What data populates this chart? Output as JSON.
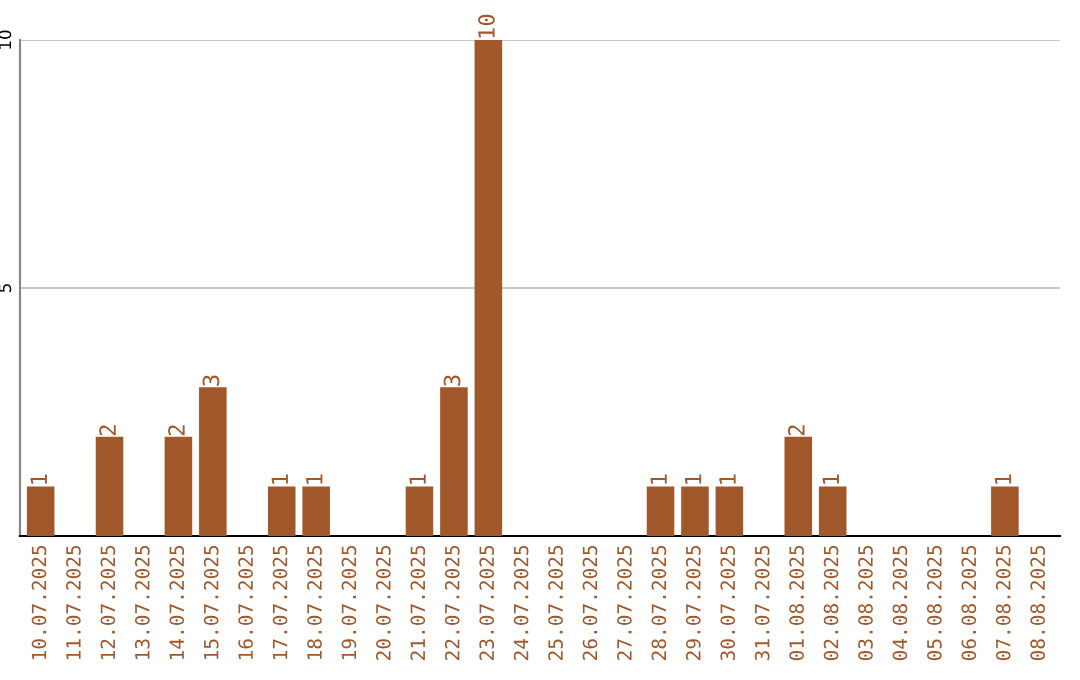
{
  "chart_data": {
    "type": "bar",
    "categories": [
      "10.07.2025",
      "11.07.2025",
      "12.07.2025",
      "13.07.2025",
      "14.07.2025",
      "15.07.2025",
      "16.07.2025",
      "17.07.2025",
      "18.07.2025",
      "19.07.2025",
      "20.07.2025",
      "21.07.2025",
      "22.07.2025",
      "23.07.2025",
      "24.07.2025",
      "25.07.2025",
      "26.07.2025",
      "27.07.2025",
      "28.07.2025",
      "29.07.2025",
      "30.07.2025",
      "31.07.2025",
      "01.08.2025",
      "02.08.2025",
      "03.08.2025",
      "04.08.2025",
      "05.08.2025",
      "06.08.2025",
      "07.08.2025",
      "08.08.2025"
    ],
    "values": [
      1,
      0,
      2,
      0,
      2,
      3,
      0,
      1,
      1,
      0,
      0,
      1,
      3,
      10,
      0,
      0,
      0,
      0,
      1,
      1,
      1,
      0,
      2,
      1,
      0,
      0,
      0,
      0,
      1,
      0
    ],
    "value_labels": [
      "1",
      null,
      "2",
      null,
      "2",
      "3",
      null,
      "1",
      "1",
      null,
      null,
      "1",
      "3",
      "10",
      null,
      null,
      null,
      null,
      "1",
      "1",
      "1",
      null,
      "2",
      "1",
      null,
      null,
      null,
      null,
      "1",
      null
    ],
    "color": "#a0572a",
    "ylim": [
      0,
      10
    ],
    "yticks": [
      5,
      10
    ],
    "grid": "y",
    "legend": false
  }
}
